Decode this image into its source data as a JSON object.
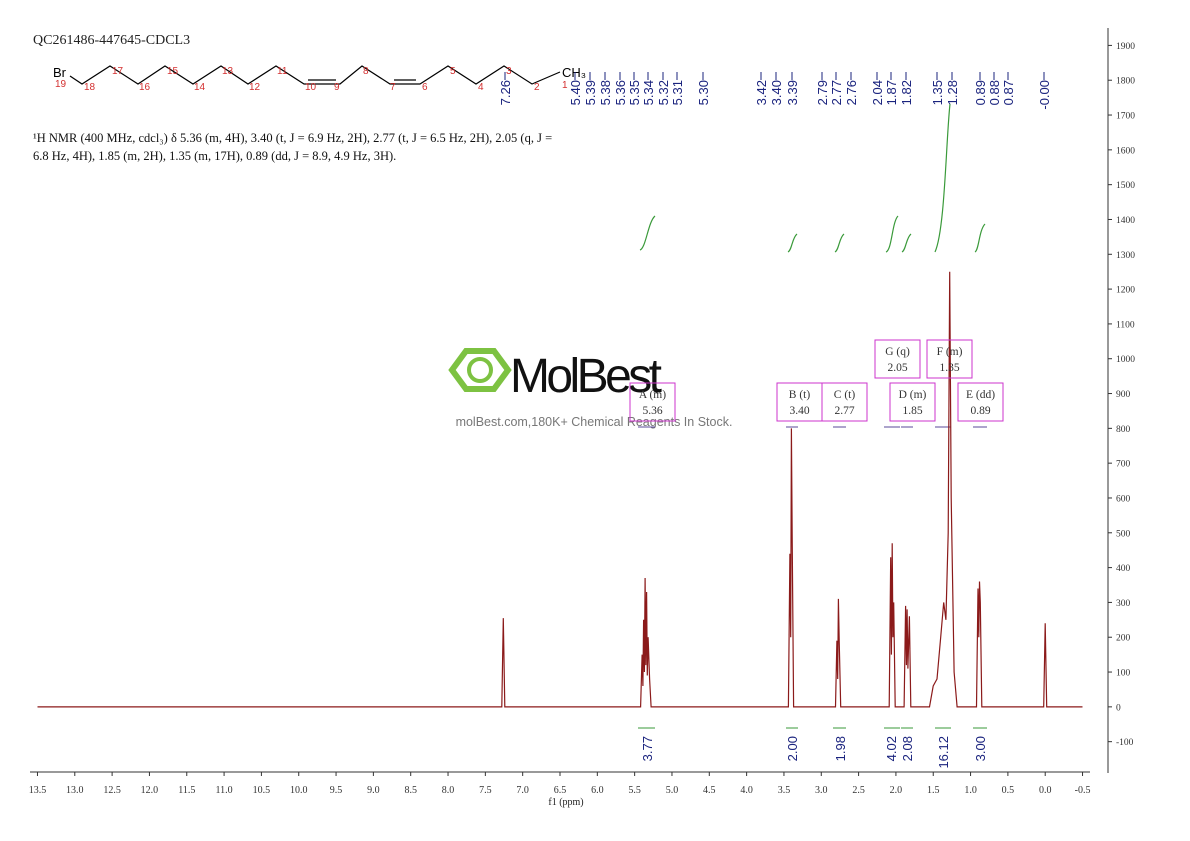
{
  "chart_data": {
    "type": "line",
    "title": "QC261486-447645-CDCL3",
    "description": [
      "¹H NMR (400 MHz, cdcl₃) δ 5.36 (m, 4H), 3.40 (t, J = 6.9 Hz, 2H), 2.77 (t, J = 6.5 Hz, 2H), 2.05 (q, J =",
      "6.8 Hz, 4H), 1.85 (m, 2H), 1.35 (m, 17H), 0.89 (dd, J = 8.9, 4.9 Hz, 3H)."
    ],
    "x_label": "f1 (ppm)",
    "color": "#8b1a1a",
    "x": [
      13.5,
      7.28,
      7.26,
      7.24,
      5.42,
      5.4,
      5.39,
      5.38,
      5.37,
      5.36,
      5.35,
      5.34,
      5.33,
      5.32,
      5.3,
      5.28,
      3.44,
      3.42,
      3.41,
      3.4,
      3.39,
      3.37,
      2.81,
      2.79,
      2.78,
      2.77,
      2.76,
      2.74,
      2.09,
      2.07,
      2.06,
      2.05,
      2.04,
      2.03,
      2.01,
      1.89,
      1.87,
      1.86,
      1.85,
      1.84,
      1.82,
      1.8,
      1.55,
      1.5,
      1.45,
      1.4,
      1.36,
      1.33,
      1.3,
      1.28,
      1.26,
      1.22,
      1.18,
      0.92,
      0.9,
      0.89,
      0.88,
      0.87,
      0.85,
      0.02,
      0.0,
      -0.02,
      -0.5
    ],
    "values": [
      0,
      0,
      255,
      0,
      0,
      150,
      60,
      250,
      100,
      370,
      120,
      330,
      90,
      200,
      80,
      0,
      0,
      440,
      200,
      800,
      480,
      0,
      0,
      190,
      80,
      310,
      190,
      0,
      0,
      430,
      150,
      470,
      200,
      300,
      0,
      0,
      290,
      120,
      280,
      110,
      260,
      0,
      0,
      60,
      80,
      200,
      300,
      250,
      500,
      1250,
      600,
      100,
      0,
      0,
      340,
      200,
      360,
      300,
      0,
      0,
      240,
      0,
      0
    ],
    "xlim": [
      13.6,
      -0.6
    ],
    "xticks": [
      13.5,
      {
        "value": 13,
        "label": "13.0"
      },
      12.5,
      {
        "value": 12,
        "label": "12.0"
      },
      11.5,
      {
        "value": 11,
        "label": "11.0"
      },
      10.5,
      {
        "value": 10,
        "label": "10.0"
      },
      9.5,
      {
        "value": 9,
        "label": "9.0"
      },
      8.5,
      {
        "value": 8,
        "label": "8.0"
      },
      7.5,
      {
        "value": 7,
        "label": "7.0"
      },
      6.5,
      {
        "value": 6,
        "label": "6.0"
      },
      5.5,
      {
        "value": 5,
        "label": "5.0"
      },
      4.5,
      {
        "value": 4,
        "label": "4.0"
      },
      3.5,
      {
        "value": 3,
        "label": "3.0"
      },
      2.5,
      {
        "value": 2,
        "label": "2.0"
      },
      1.5,
      {
        "value": 1,
        "label": "1.0"
      },
      0.5,
      {
        "value": 0,
        "label": "0.0"
      },
      -0.5
    ],
    "ylim": [
      -190,
      1950
    ],
    "yticks": [
      -100,
      0,
      100,
      200,
      300,
      400,
      500,
      600,
      700,
      800,
      900,
      1000,
      1100,
      1200,
      1300,
      1400,
      1500,
      1600,
      1700,
      1800,
      1900
    ],
    "peak_labels": [
      "7.26",
      "5.40",
      "5.39",
      "5.38",
      "5.36",
      "5.35",
      "5.34",
      "5.32",
      "5.31",
      "5.30",
      "3.42",
      "3.40",
      "3.39",
      "2.79",
      "2.77",
      "2.76",
      "2.04",
      "1.87",
      "1.82",
      "1.35",
      "1.28",
      "0.89",
      "0.88",
      "0.87",
      "-0.00"
    ],
    "multiplets": [
      {
        "label": "A (m)",
        "shift": "5.36"
      },
      {
        "label": "B (t)",
        "shift": "3.40"
      },
      {
        "label": "C (t)",
        "shift": "2.77"
      },
      {
        "label": "G (q)",
        "shift": "2.05"
      },
      {
        "label": "D (m)",
        "shift": "1.85"
      },
      {
        "label": "F (m)",
        "shift": "1.35"
      },
      {
        "label": "E (dd)",
        "shift": "0.89"
      }
    ],
    "integrals": [
      "3.77",
      "2.00",
      "1.98",
      "4.02",
      "2.08",
      "16.12",
      "3.00"
    ],
    "structure": {
      "atoms": [
        "Br",
        "CH₃"
      ],
      "numbers": [
        "19",
        "18",
        "17",
        "16",
        "15",
        "14",
        "13",
        "12",
        "11",
        "10",
        "9",
        "8",
        "7",
        "6",
        "5",
        "4",
        "3",
        "2",
        "1"
      ]
    },
    "watermark": {
      "logo": "MolBest",
      "text": "molBest.com,180K+ Chemical Reagents In Stock."
    }
  }
}
